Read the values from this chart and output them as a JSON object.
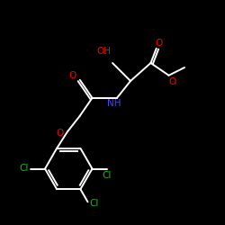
{
  "bg_color": "#000000",
  "bond_color": "#ffffff",
  "O_color": "#ff0000",
  "N_color": "#4444ff",
  "Cl_color": "#00cc00",
  "lw": 1.4,
  "fs": 7.5,
  "fig_w": 2.5,
  "fig_h": 2.5,
  "dpi": 100,
  "xlim": [
    0,
    10
  ],
  "ylim": [
    0,
    10
  ]
}
